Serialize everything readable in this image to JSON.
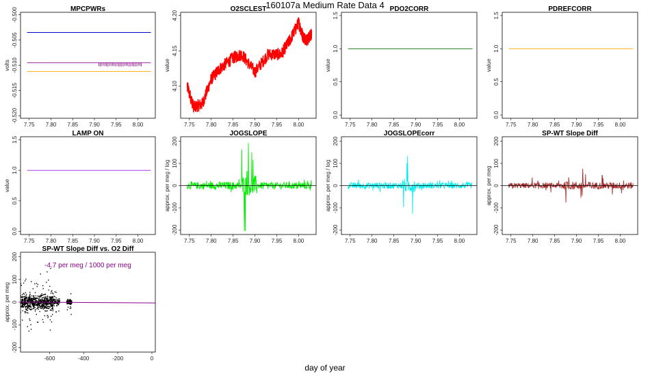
{
  "figure": {
    "title": "160107a   Medium Rate Data 4",
    "xlabel": "day of year"
  },
  "chart_data": [
    {
      "type": "line",
      "title": "MPCPWRs",
      "ylabel": "volts",
      "xlim": [
        7.73,
        8.04
      ],
      "ylim": [
        -0.5205,
        -0.4995
      ],
      "xticks": [
        "7.75",
        "7.80",
        "7.85",
        "7.90",
        "7.95",
        "8.00"
      ],
      "yticks": [
        "-0.520",
        "-0.515",
        "-0.510",
        "-0.505",
        "-0.500"
      ],
      "series": [
        {
          "color": "#0000cc",
          "x": [
            7.745,
            8.03
          ],
          "y": [
            -0.5035,
            -0.5035
          ]
        },
        {
          "color": "#8b008b",
          "x": [
            7.745,
            8.03
          ],
          "y": [
            -0.5095,
            -0.5095
          ],
          "spikes": [
            7.91,
            8.01,
            -0.5102
          ]
        },
        {
          "color": "#ffa500",
          "x": [
            7.745,
            8.03
          ],
          "y": [
            -0.5112,
            -0.5112
          ]
        }
      ]
    },
    {
      "type": "line",
      "title": "O2SCLEST",
      "ylabel": "value",
      "xlim": [
        7.73,
        8.04
      ],
      "ylim": [
        4.0545,
        4.2045
      ],
      "xticks": [
        "7.75",
        "7.80",
        "7.85",
        "7.90",
        "7.95",
        "8.00"
      ],
      "yticks": [
        "4.10",
        "4.15",
        "4.20"
      ],
      "series": [
        {
          "color": "#ff0000",
          "noise": 0.018,
          "x": [
            7.745,
            7.76,
            7.78,
            7.8,
            7.82,
            7.85,
            7.87,
            7.9,
            7.93,
            7.96,
            7.98,
            8.0,
            8.01,
            8.02,
            8.03
          ],
          "y": [
            4.1,
            4.07,
            4.075,
            4.11,
            4.125,
            4.14,
            4.145,
            4.12,
            4.145,
            4.145,
            4.165,
            4.19,
            4.17,
            4.165,
            4.175
          ]
        }
      ]
    },
    {
      "type": "line",
      "title": "PDO2CORR",
      "ylabel": "value",
      "xlim": [
        7.73,
        8.04
      ],
      "ylim": [
        -0.05,
        1.55
      ],
      "xticks": [
        "7.75",
        "7.80",
        "7.85",
        "7.90",
        "7.95",
        "8.00"
      ],
      "yticks": [
        "0.0",
        "0.5",
        "1.0",
        "1.5"
      ],
      "series": [
        {
          "color": "#006400",
          "x": [
            7.745,
            8.03
          ],
          "y": [
            1.0,
            1.0
          ]
        }
      ]
    },
    {
      "type": "line",
      "title": "PDREFCORR",
      "ylabel": "value",
      "xlim": [
        7.73,
        8.04
      ],
      "ylim": [
        -0.05,
        1.55
      ],
      "xticks": [
        "7.75",
        "7.80",
        "7.85",
        "7.90",
        "7.95",
        "8.00"
      ],
      "yticks": [
        "0.0",
        "0.5",
        "1.0",
        "1.5"
      ],
      "series": [
        {
          "color": "#ffa500",
          "x": [
            7.745,
            8.03
          ],
          "y": [
            1.0,
            1.0
          ]
        }
      ]
    },
    {
      "type": "line",
      "title": "LAMP ON",
      "ylabel": "value",
      "xlim": [
        7.73,
        8.04
      ],
      "ylim": [
        -0.05,
        1.55
      ],
      "xticks": [
        "7.75",
        "7.80",
        "7.85",
        "7.90",
        "7.95",
        "8.00"
      ],
      "yticks": [
        "0.0",
        "0.5",
        "1.0",
        "1.5"
      ],
      "series": [
        {
          "color": "#a020f0",
          "x": [
            7.745,
            8.03
          ],
          "y": [
            1.0,
            1.0
          ]
        }
      ]
    },
    {
      "type": "line",
      "title": "JOGSLOPE",
      "ylabel": "approx. per meg / log",
      "xlim": [
        7.73,
        8.04
      ],
      "ylim": [
        -220,
        220
      ],
      "xticks": [
        "7.75",
        "7.80",
        "7.85",
        "7.90",
        "7.95",
        "8.00"
      ],
      "yticks": [
        "-200",
        "-100",
        "0",
        "100",
        "200"
      ],
      "hline": 0,
      "baseline": 0,
      "series": [
        {
          "color": "#00ee00",
          "noise": 12,
          "bursts": [
            [
              7.745,
              7.8,
              25
            ],
            [
              7.8,
              7.87,
              35
            ],
            [
              7.87,
              7.905,
              220
            ],
            [
              7.905,
              8.0,
              20
            ],
            [
              8.0,
              8.03,
              30
            ]
          ]
        }
      ]
    },
    {
      "type": "line",
      "title": "JOGSLOPEcorr",
      "ylabel": "approx. per meg / log",
      "xlim": [
        7.73,
        8.04
      ],
      "ylim": [
        -220,
        220
      ],
      "xticks": [
        "7.75",
        "7.80",
        "7.85",
        "7.90",
        "7.95",
        "8.00"
      ],
      "yticks": [
        "-200",
        "-100",
        "0",
        "100",
        "200"
      ],
      "hline": 0,
      "baseline": 0,
      "series": [
        {
          "color": "#00eeee",
          "noise": 10,
          "bursts": [
            [
              7.745,
              7.87,
              30
            ],
            [
              7.87,
              7.9,
              140
            ],
            [
              7.9,
              8.03,
              25
            ]
          ]
        }
      ]
    },
    {
      "type": "line",
      "title": "SP-WT Slope Diff",
      "ylabel": "approx. per meg",
      "xlim": [
        7.73,
        8.04
      ],
      "ylim": [
        -220,
        220
      ],
      "xticks": [
        "7.75",
        "7.80",
        "7.85",
        "7.90",
        "7.95",
        "8.00"
      ],
      "yticks": [
        "-200",
        "-100",
        "0",
        "100",
        "200"
      ],
      "hline": 0,
      "baseline": 0,
      "series": [
        {
          "color": "#a52a2a",
          "noise": 6,
          "bursts": [
            [
              7.745,
              7.86,
              40
            ],
            [
              7.86,
              7.94,
              80
            ],
            [
              7.94,
              8.03,
              60
            ]
          ]
        }
      ]
    },
    {
      "type": "scatter",
      "title": "SP-WT Slope Diff vs. O2 Diff",
      "ylabel": "approx. per meg",
      "xlim": [
        -770,
        20
      ],
      "ylim": [
        -220,
        220
      ],
      "xticks": [
        "-600",
        "-400",
        "-200",
        "0"
      ],
      "yticks": [
        "-200",
        "-100",
        "0",
        "100",
        "200"
      ],
      "annotation": "-4.7 per meg / 1000 per meg",
      "fit": {
        "color": "#8b008b",
        "x": [
          -770,
          20
        ],
        "y": [
          0.3,
          -3.4
        ]
      },
      "clusters": [
        {
          "x": [
            -770,
            -580
          ],
          "spread": 28,
          "n": 700
        },
        {
          "x": [
            -580,
            -540
          ],
          "spread": 12,
          "n": 80
        },
        {
          "x": [
            -500,
            -470
          ],
          "spread": 10,
          "n": 120
        }
      ]
    }
  ]
}
